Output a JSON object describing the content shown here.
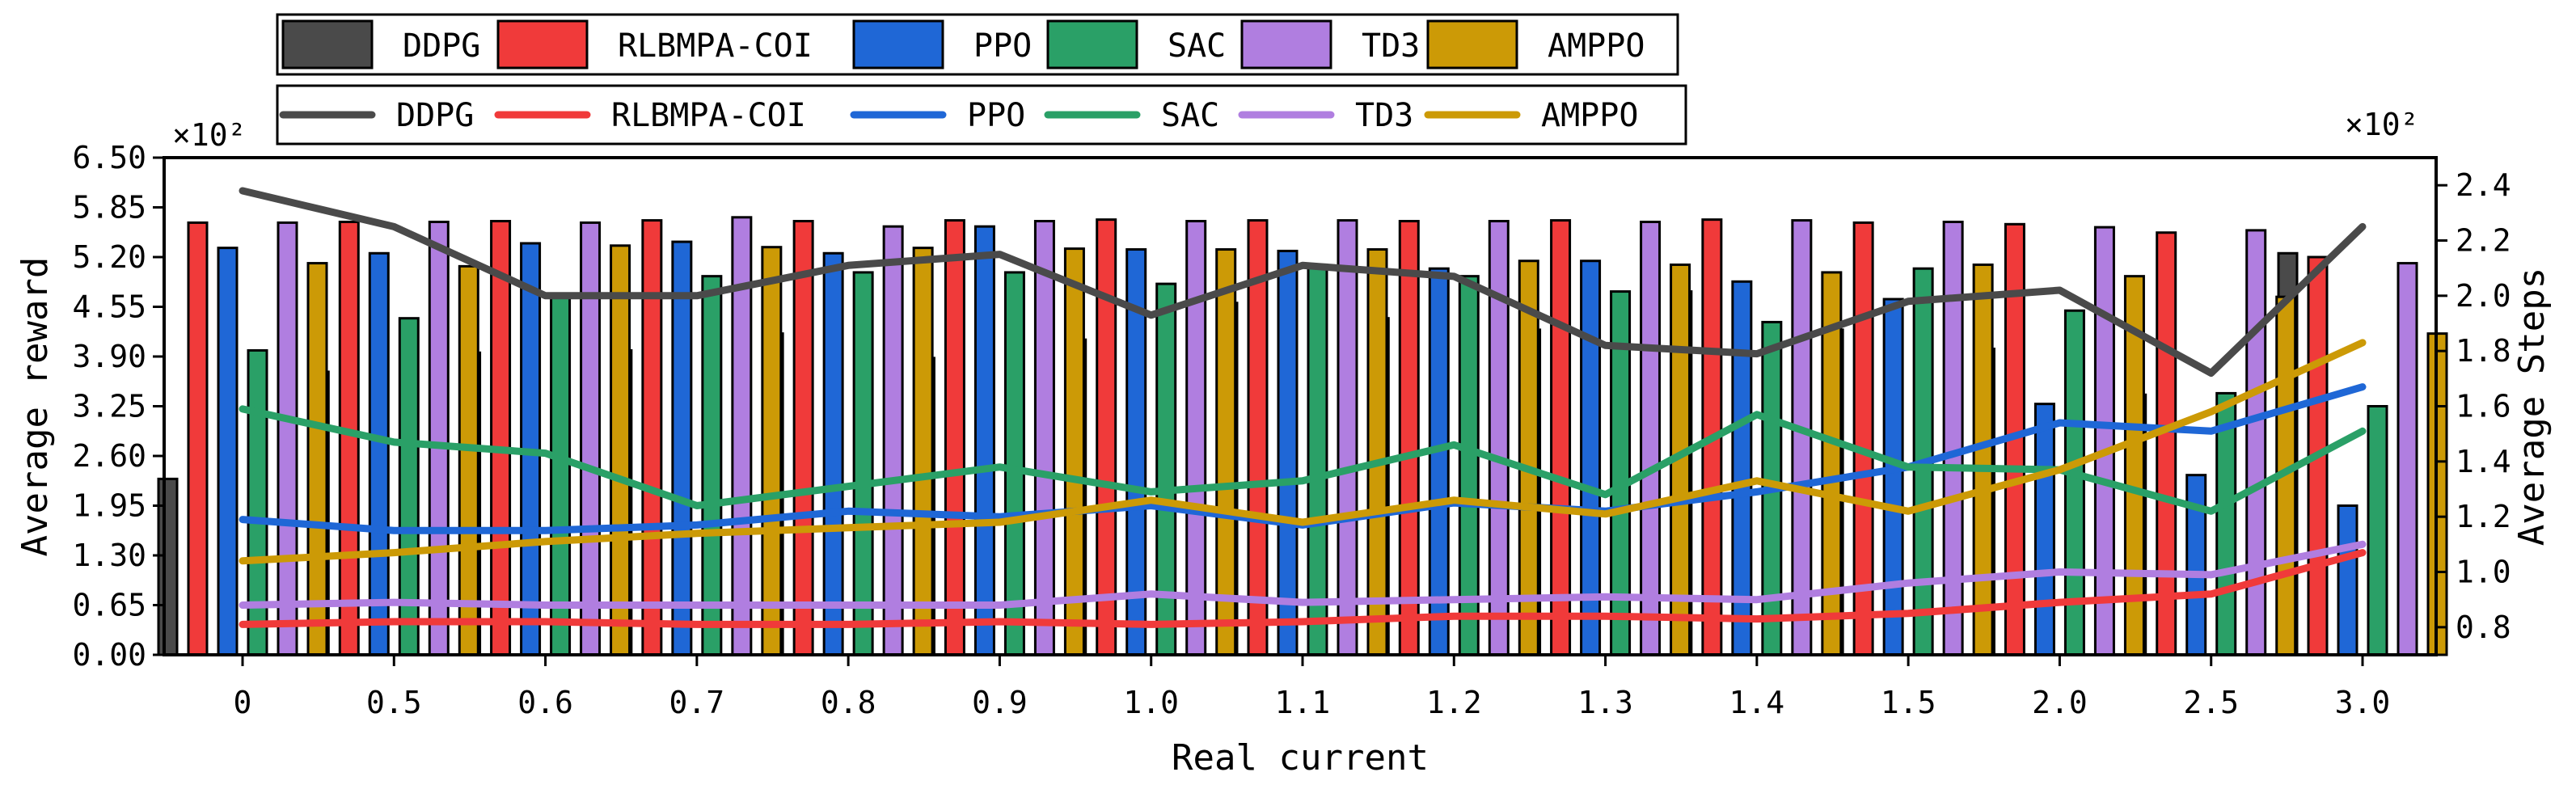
{
  "chart_data": {
    "type": "bar+line",
    "xlabel": "Real current",
    "ylabel_left": "Average reward",
    "ylabel_right": "Average Steps",
    "left_exponent_label": "×10²",
    "right_exponent_label": "×10²",
    "categories": [
      "0",
      "0.5",
      "0.6",
      "0.7",
      "0.8",
      "0.9",
      "1.0",
      "1.1",
      "1.2",
      "1.3",
      "1.4",
      "1.5",
      "2.0",
      "2.5",
      "3.0"
    ],
    "left_axis": {
      "ylim": [
        0,
        6.5
      ],
      "ticks": [
        "0.00",
        "0.65",
        "1.30",
        "1.95",
        "2.60",
        "3.25",
        "3.90",
        "4.55",
        "5.20",
        "5.85",
        "6.50"
      ]
    },
    "right_axis": {
      "ylim": [
        0.7,
        2.5
      ],
      "ticks": [
        "0.8",
        "1.0",
        "1.2",
        "1.4",
        "1.6",
        "1.8",
        "2.0",
        "2.2",
        "2.4"
      ],
      "tick_values": [
        0.8,
        1.0,
        1.2,
        1.4,
        1.6,
        1.8,
        2.0,
        2.2,
        2.4
      ]
    },
    "bar_series": [
      {
        "name": "DDPG",
        "color": "#4a4a4a",
        "values": [
          2.3,
          3.7,
          3.95,
          3.98,
          4.2,
          3.88,
          4.12,
          4.6,
          4.4,
          4.25,
          4.75,
          4.25,
          4.0,
          3.4,
          5.25
        ]
      },
      {
        "name": "RLBMPA-COI",
        "color": "#f03a3a",
        "values": [
          5.65,
          5.66,
          5.67,
          5.68,
          5.67,
          5.68,
          5.69,
          5.68,
          5.67,
          5.68,
          5.69,
          5.65,
          5.63,
          5.52,
          5.2
        ]
      },
      {
        "name": "PPO",
        "color": "#1f67d6",
        "values": [
          5.32,
          5.25,
          5.38,
          5.4,
          5.25,
          5.6,
          5.3,
          5.28,
          5.05,
          5.15,
          4.88,
          4.65,
          3.28,
          2.35,
          1.95
        ]
      },
      {
        "name": "SAC",
        "color": "#2aa067",
        "values": [
          3.98,
          4.4,
          4.7,
          4.95,
          5.0,
          5.0,
          4.85,
          5.1,
          4.95,
          4.75,
          4.35,
          5.05,
          4.5,
          3.42,
          3.25
        ]
      },
      {
        "name": "TD3",
        "color": "#b07ee0",
        "values": [
          5.65,
          5.66,
          5.65,
          5.72,
          5.6,
          5.67,
          5.67,
          5.68,
          5.67,
          5.66,
          5.68,
          5.66,
          5.59,
          5.55,
          5.12
        ]
      },
      {
        "name": "AMPPO",
        "color": "#cc9a06",
        "values": [
          5.12,
          5.08,
          5.35,
          5.33,
          5.32,
          5.31,
          5.3,
          5.3,
          5.15,
          5.1,
          5.0,
          5.1,
          4.95,
          4.68,
          4.2
        ]
      }
    ],
    "line_series": [
      {
        "name": "DDPG",
        "color": "#4a4a4a",
        "values": [
          2.38,
          2.25,
          2.0,
          2.0,
          2.11,
          2.15,
          1.93,
          2.11,
          2.07,
          1.82,
          1.79,
          1.98,
          2.02,
          1.72,
          2.25
        ]
      },
      {
        "name": "RLBMPA-COI",
        "color": "#f03a3a",
        "values": [
          0.81,
          0.82,
          0.82,
          0.81,
          0.81,
          0.82,
          0.81,
          0.82,
          0.84,
          0.84,
          0.83,
          0.85,
          0.89,
          0.92,
          1.07
        ]
      },
      {
        "name": "PPO",
        "color": "#1f67d6",
        "values": [
          1.19,
          1.15,
          1.15,
          1.17,
          1.22,
          1.2,
          1.24,
          1.17,
          1.25,
          1.22,
          1.29,
          1.38,
          1.54,
          1.51,
          1.67
        ]
      },
      {
        "name": "SAC",
        "color": "#2aa067",
        "values": [
          1.59,
          1.47,
          1.43,
          1.24,
          1.31,
          1.38,
          1.29,
          1.33,
          1.46,
          1.28,
          1.57,
          1.38,
          1.37,
          1.22,
          1.51
        ]
      },
      {
        "name": "TD3",
        "color": "#b07ee0",
        "values": [
          0.88,
          0.89,
          0.88,
          0.88,
          0.88,
          0.88,
          0.92,
          0.89,
          0.9,
          0.91,
          0.9,
          0.96,
          1.0,
          0.99,
          1.1
        ]
      },
      {
        "name": "AMPPO",
        "color": "#cc9a06",
        "values": [
          1.04,
          1.07,
          1.11,
          1.14,
          1.16,
          1.18,
          1.26,
          1.18,
          1.26,
          1.21,
          1.33,
          1.22,
          1.37,
          1.58,
          1.83
        ]
      }
    ],
    "legends": {
      "bars": [
        "DDPG",
        "RLBMPA-COI",
        "PPO",
        "SAC",
        "TD3",
        "AMPPO"
      ],
      "lines": [
        "DDPG",
        "RLBMPA-COI",
        "PPO",
        "SAC",
        "TD3",
        "AMPPO"
      ],
      "placement": "top"
    }
  }
}
